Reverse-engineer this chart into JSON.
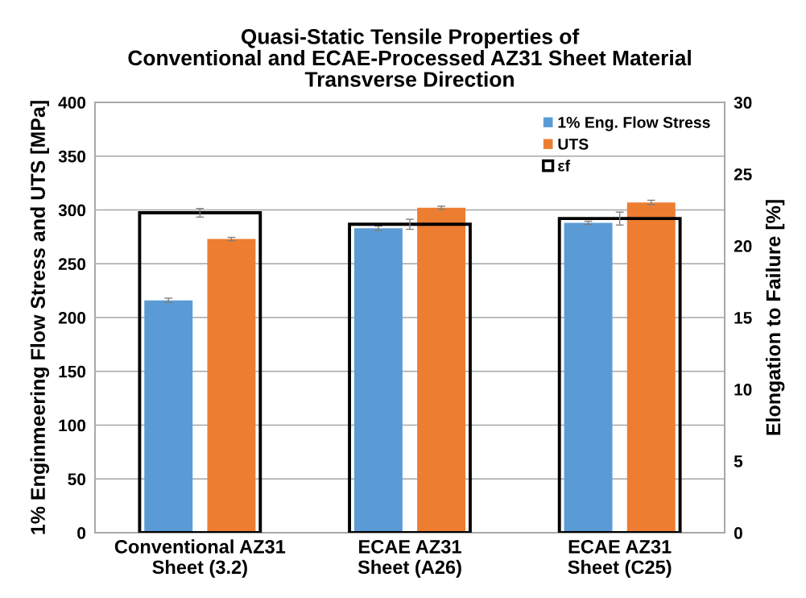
{
  "chart_data": {
    "type": "bar",
    "title": "Quasi-Static Tensile Properties of\nConventional and ECAE-Processed AZ31 Sheet Material\nTransverse Direction",
    "categories": [
      "Conventional AZ31\nSheet (3.2)",
      "ECAE AZ31\nSheet (A26)",
      "ECAE AZ31\nSheet (C25)"
    ],
    "series": [
      {
        "name": "1% Eng. Flow Stress",
        "color": "#5b9bd5",
        "values": [
          216,
          283,
          288
        ],
        "errors": [
          2,
          2,
          1.5
        ]
      },
      {
        "name": "UTS",
        "color": "#ed7d31",
        "values": [
          273,
          302,
          307
        ],
        "errors": [
          1.5,
          1.5,
          2
        ]
      },
      {
        "name": "εf",
        "color": "#000000",
        "axis": "y2",
        "values": [
          22.3,
          21.5,
          21.9
        ],
        "errors": [
          0.3,
          0.35,
          0.45
        ]
      }
    ],
    "ylabel": "1% Enginmeering Flow Stress and UTS [MPa]",
    "y2label": "Elongation to Failure [%]",
    "ylim": [
      0,
      400
    ],
    "yticks": [
      0,
      50,
      100,
      150,
      200,
      250,
      300,
      350,
      400
    ],
    "y2lim": [
      0,
      30
    ],
    "y2ticks": [
      0,
      5,
      10,
      15,
      20,
      25,
      30
    ],
    "grid": "y",
    "legend": "top right"
  }
}
